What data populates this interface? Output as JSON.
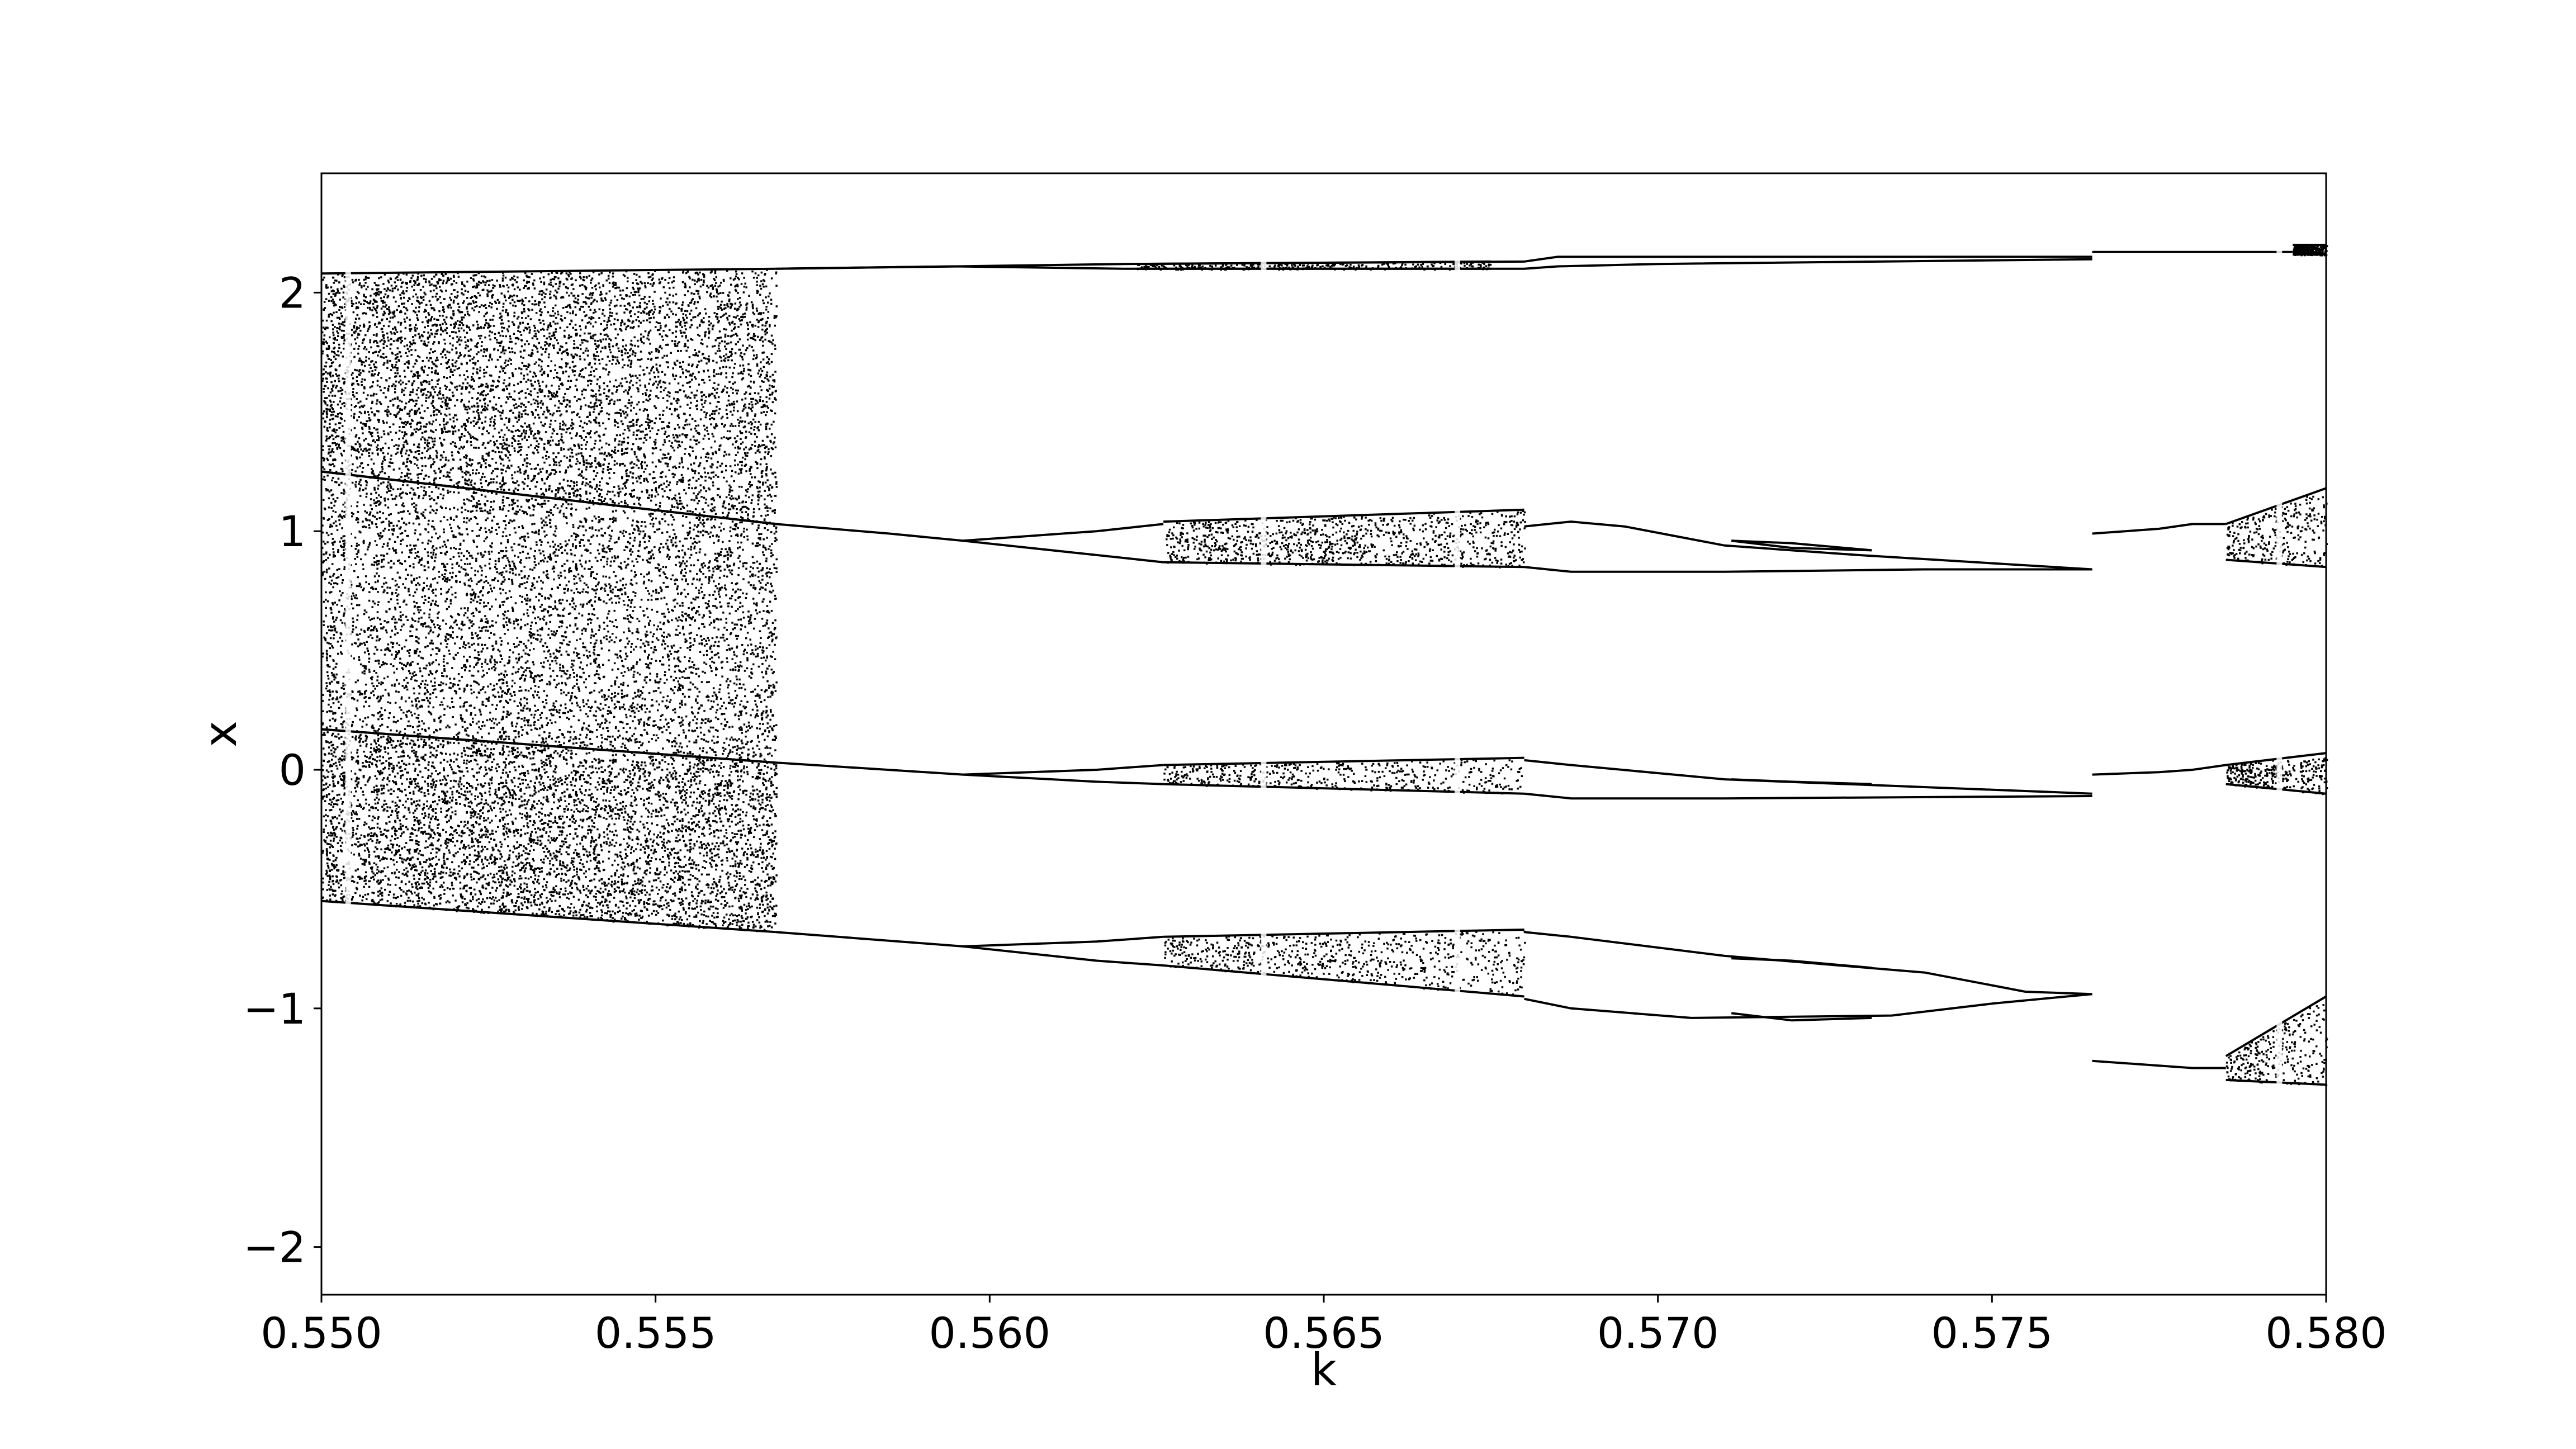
{
  "chart_data": {
    "type": "scatter",
    "title": "",
    "xlabel": "k",
    "ylabel": "x",
    "xlim": [
      0.55,
      0.58
    ],
    "ylim": [
      -2.2,
      2.5
    ],
    "grid": false,
    "legend": "none",
    "marker_color": "#000000",
    "x_ticks": [
      0.55,
      0.555,
      0.56,
      0.565,
      0.57,
      0.575,
      0.58
    ],
    "x_tick_labels": [
      "0.550",
      "0.555",
      "0.560",
      "0.565",
      "0.570",
      "0.575",
      "0.580"
    ],
    "y_ticks": [
      -2,
      -1,
      0,
      1,
      2
    ],
    "y_tick_labels": [
      "−2",
      "−1",
      "0",
      "1",
      "2"
    ],
    "chaotic_bands": [
      {
        "k_start": 0.55,
        "k_end": 0.5568,
        "lower_start": 1.25,
        "lower_end": 1.03,
        "upper_start": 2.08,
        "upper_end": 2.1
      },
      {
        "k_start": 0.55,
        "k_end": 0.5568,
        "lower_start": 0.17,
        "lower_end": 0.03,
        "upper_start": 1.25,
        "upper_end": 1.03
      },
      {
        "k_start": 0.55,
        "k_end": 0.5568,
        "lower_start": -0.55,
        "lower_end": -0.68,
        "upper_start": 0.17,
        "upper_end": 0.03
      },
      {
        "k_start": 0.5626,
        "k_end": 0.568,
        "lower_start": 0.87,
        "lower_end": 0.85,
        "upper_start": 1.04,
        "upper_end": 1.09
      },
      {
        "k_start": 0.5626,
        "k_end": 0.568,
        "lower_start": -0.06,
        "lower_end": -0.1,
        "upper_start": 0.02,
        "upper_end": 0.05
      },
      {
        "k_start": 0.5626,
        "k_end": 0.568,
        "lower_start": -0.82,
        "lower_end": -0.95,
        "upper_start": -0.7,
        "upper_end": -0.67
      },
      {
        "k_start": 0.5622,
        "k_end": 0.5675,
        "lower_start": 2.1,
        "lower_end": 2.1,
        "upper_start": 2.12,
        "upper_end": 2.13
      },
      {
        "k_start": 0.5785,
        "k_end": 0.58,
        "lower_start": 0.88,
        "lower_end": 0.85,
        "upper_start": 1.03,
        "upper_end": 1.18
      },
      {
        "k_start": 0.5785,
        "k_end": 0.58,
        "lower_start": -0.06,
        "lower_end": -0.1,
        "upper_start": 0.02,
        "upper_end": 0.07
      },
      {
        "k_start": 0.5785,
        "k_end": 0.58,
        "lower_start": -1.3,
        "lower_end": -1.32,
        "upper_start": -1.2,
        "upper_end": -0.95
      },
      {
        "k_start": 0.5795,
        "k_end": 0.58,
        "lower_start": 2.16,
        "lower_end": 2.16,
        "upper_start": 2.2,
        "upper_end": 2.2
      }
    ],
    "branches": [
      {
        "k": [
          0.5568,
          0.5595,
          0.562,
          0.568,
          0.5685,
          0.57,
          0.5765
        ],
        "x": [
          2.1,
          2.11,
          2.12,
          2.13,
          2.15,
          2.15,
          2.15
        ]
      },
      {
        "k": [
          0.5568,
          0.5595,
          0.562,
          0.568,
          0.5685,
          0.57,
          0.5765
        ],
        "x": [
          2.1,
          2.11,
          2.1,
          2.1,
          2.11,
          2.12,
          2.14
        ]
      },
      {
        "k": [
          0.5568,
          0.5585,
          0.5596,
          0.5616,
          0.5626
        ],
        "x": [
          1.03,
          0.99,
          0.96,
          1.0,
          1.03
        ]
      },
      {
        "k": [
          0.5596,
          0.5616,
          0.5626
        ],
        "x": [
          0.96,
          0.9,
          0.87
        ]
      },
      {
        "k": [
          0.568,
          0.5687,
          0.5695,
          0.571,
          0.573,
          0.5765
        ],
        "x": [
          1.02,
          1.04,
          1.02,
          0.94,
          0.9,
          0.84
        ]
      },
      {
        "k": [
          0.568,
          0.5687,
          0.571,
          0.574,
          0.5765
        ],
        "x": [
          0.85,
          0.83,
          0.83,
          0.84,
          0.84
        ]
      },
      {
        "k": [
          0.5711,
          0.572,
          0.5732
        ],
        "x": [
          0.96,
          0.95,
          0.92
        ]
      },
      {
        "k": [
          0.5711,
          0.572,
          0.5732
        ],
        "x": [
          0.96,
          0.93,
          0.92
        ]
      },
      {
        "k": [
          0.5568,
          0.5596,
          0.5616,
          0.5626
        ],
        "x": [
          0.03,
          -0.02,
          0.0,
          0.02
        ]
      },
      {
        "k": [
          0.5596,
          0.5616,
          0.5626
        ],
        "x": [
          -0.02,
          -0.05,
          -0.06
        ]
      },
      {
        "k": [
          0.568,
          0.5687,
          0.571,
          0.5765
        ],
        "x": [
          0.04,
          0.02,
          -0.04,
          -0.1
        ]
      },
      {
        "k": [
          0.568,
          0.5687,
          0.571,
          0.5765
        ],
        "x": [
          -0.1,
          -0.12,
          -0.12,
          -0.11
        ]
      },
      {
        "k": [
          0.5711,
          0.572,
          0.5732
        ],
        "x": [
          -0.04,
          -0.05,
          -0.06
        ]
      },
      {
        "k": [
          0.5568,
          0.5596,
          0.5616,
          0.5626
        ],
        "x": [
          -0.68,
          -0.74,
          -0.72,
          -0.7
        ]
      },
      {
        "k": [
          0.5596,
          0.5616,
          0.5626
        ],
        "x": [
          -0.74,
          -0.8,
          -0.82
        ]
      },
      {
        "k": [
          0.568,
          0.5687,
          0.571,
          0.574,
          0.5755,
          0.5765
        ],
        "x": [
          -0.68,
          -0.7,
          -0.78,
          -0.85,
          -0.93,
          -0.94
        ]
      },
      {
        "k": [
          0.568,
          0.5687,
          0.5705,
          0.5735,
          0.575,
          0.5765
        ],
        "x": [
          -0.96,
          -1.0,
          -1.04,
          -1.03,
          -0.98,
          -0.94
        ]
      },
      {
        "k": [
          0.5711,
          0.572,
          0.5732
        ],
        "x": [
          -0.79,
          -0.8,
          -0.83
        ]
      },
      {
        "k": [
          0.5711,
          0.572,
          0.5732
        ],
        "x": [
          -1.02,
          -1.05,
          -1.04
        ]
      },
      {
        "k": [
          0.5765,
          0.5775,
          0.578,
          0.5785
        ],
        "x": [
          0.99,
          1.01,
          1.03,
          1.03
        ]
      },
      {
        "k": [
          0.5765,
          0.5775,
          0.578,
          0.5785
        ],
        "x": [
          -0.02,
          -0.01,
          0.0,
          0.02
        ]
      },
      {
        "k": [
          0.5765,
          0.5775,
          0.578,
          0.5785
        ],
        "x": [
          -1.22,
          -1.24,
          -1.25,
          -1.25
        ]
      },
      {
        "k": [
          0.5765,
          0.5785,
          0.5795
        ],
        "x": [
          2.17,
          2.17,
          2.17
        ]
      }
    ],
    "periodic_window_gaps": [
      0.5504,
      0.5641,
      0.567,
      0.5793
    ]
  }
}
